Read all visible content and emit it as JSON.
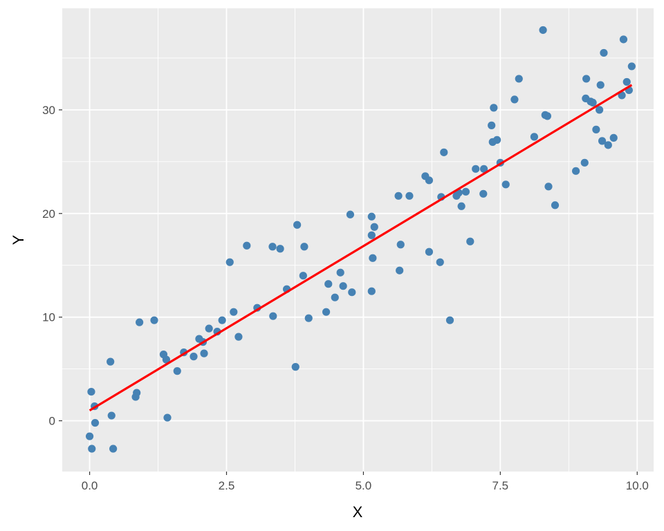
{
  "chart_data": {
    "type": "scatter",
    "title": "",
    "xlabel": "X",
    "ylabel": "Y",
    "xlim": [
      -0.5,
      10.3
    ],
    "ylim": [
      -4.9,
      39.8
    ],
    "x_ticks": [
      0.0,
      2.5,
      5.0,
      7.5,
      10.0
    ],
    "x_tick_labels": [
      "0.0",
      "2.5",
      "5.0",
      "7.5",
      "10.0"
    ],
    "y_ticks": [
      0,
      10,
      20,
      30
    ],
    "y_tick_labels": [
      "0",
      "10",
      "20",
      "30"
    ],
    "grid": true,
    "panel_background": "#ebebeb",
    "point_color": "#4682b4",
    "line_color": "#ff0000",
    "points": [
      {
        "x": 0.03,
        "y": 2.8
      },
      {
        "x": 0.0,
        "y": -1.5
      },
      {
        "x": 0.04,
        "y": -2.7
      },
      {
        "x": 0.09,
        "y": 1.4
      },
      {
        "x": 0.1,
        "y": -0.2
      },
      {
        "x": 0.38,
        "y": 5.7
      },
      {
        "x": 0.4,
        "y": 0.5
      },
      {
        "x": 0.43,
        "y": -2.7
      },
      {
        "x": 0.84,
        "y": 2.3
      },
      {
        "x": 0.86,
        "y": 2.7
      },
      {
        "x": 0.91,
        "y": 9.5
      },
      {
        "x": 1.18,
        "y": 9.7
      },
      {
        "x": 1.35,
        "y": 6.4
      },
      {
        "x": 1.4,
        "y": 5.9
      },
      {
        "x": 1.42,
        "y": 0.3
      },
      {
        "x": 1.6,
        "y": 4.8
      },
      {
        "x": 1.72,
        "y": 6.6
      },
      {
        "x": 1.9,
        "y": 6.2
      },
      {
        "x": 2.0,
        "y": 7.9
      },
      {
        "x": 2.07,
        "y": 7.6
      },
      {
        "x": 2.09,
        "y": 6.5
      },
      {
        "x": 2.18,
        "y": 8.9
      },
      {
        "x": 2.33,
        "y": 8.6
      },
      {
        "x": 2.42,
        "y": 9.7
      },
      {
        "x": 2.56,
        "y": 15.3
      },
      {
        "x": 2.63,
        "y": 10.5
      },
      {
        "x": 2.72,
        "y": 8.1
      },
      {
        "x": 2.87,
        "y": 16.9
      },
      {
        "x": 3.06,
        "y": 10.9
      },
      {
        "x": 3.34,
        "y": 16.8
      },
      {
        "x": 3.35,
        "y": 10.1
      },
      {
        "x": 3.48,
        "y": 16.6
      },
      {
        "x": 3.6,
        "y": 12.7
      },
      {
        "x": 3.76,
        "y": 5.2
      },
      {
        "x": 3.79,
        "y": 18.9
      },
      {
        "x": 3.9,
        "y": 14.0
      },
      {
        "x": 3.92,
        "y": 16.8
      },
      {
        "x": 4.0,
        "y": 9.9
      },
      {
        "x": 4.32,
        "y": 10.5
      },
      {
        "x": 4.36,
        "y": 13.2
      },
      {
        "x": 4.48,
        "y": 11.9
      },
      {
        "x": 4.58,
        "y": 14.3
      },
      {
        "x": 4.63,
        "y": 13.0
      },
      {
        "x": 4.76,
        "y": 19.9
      },
      {
        "x": 4.79,
        "y": 12.4
      },
      {
        "x": 5.15,
        "y": 19.7
      },
      {
        "x": 5.15,
        "y": 17.9
      },
      {
        "x": 5.15,
        "y": 12.5
      },
      {
        "x": 5.17,
        "y": 15.7
      },
      {
        "x": 5.2,
        "y": 18.7
      },
      {
        "x": 5.64,
        "y": 21.7
      },
      {
        "x": 5.66,
        "y": 14.5
      },
      {
        "x": 5.68,
        "y": 17.0
      },
      {
        "x": 5.84,
        "y": 21.7
      },
      {
        "x": 6.13,
        "y": 23.6
      },
      {
        "x": 6.2,
        "y": 23.2
      },
      {
        "x": 6.2,
        "y": 16.3
      },
      {
        "x": 6.4,
        "y": 15.3
      },
      {
        "x": 6.42,
        "y": 21.6
      },
      {
        "x": 6.47,
        "y": 25.9
      },
      {
        "x": 6.58,
        "y": 9.7
      },
      {
        "x": 6.7,
        "y": 21.7
      },
      {
        "x": 6.74,
        "y": 22.0
      },
      {
        "x": 6.79,
        "y": 20.7
      },
      {
        "x": 6.87,
        "y": 22.1
      },
      {
        "x": 6.95,
        "y": 17.3
      },
      {
        "x": 7.05,
        "y": 24.3
      },
      {
        "x": 7.19,
        "y": 21.9
      },
      {
        "x": 7.2,
        "y": 24.3
      },
      {
        "x": 7.34,
        "y": 28.5
      },
      {
        "x": 7.36,
        "y": 26.9
      },
      {
        "x": 7.38,
        "y": 30.2
      },
      {
        "x": 7.44,
        "y": 27.1
      },
      {
        "x": 7.5,
        "y": 24.9
      },
      {
        "x": 7.6,
        "y": 22.8
      },
      {
        "x": 7.76,
        "y": 31.0
      },
      {
        "x": 7.84,
        "y": 33.0
      },
      {
        "x": 8.12,
        "y": 27.4
      },
      {
        "x": 8.28,
        "y": 37.7
      },
      {
        "x": 8.32,
        "y": 29.5
      },
      {
        "x": 8.36,
        "y": 29.4
      },
      {
        "x": 8.38,
        "y": 22.6
      },
      {
        "x": 8.5,
        "y": 20.8
      },
      {
        "x": 8.88,
        "y": 24.1
      },
      {
        "x": 9.04,
        "y": 24.9
      },
      {
        "x": 9.06,
        "y": 31.1
      },
      {
        "x": 9.07,
        "y": 33.0
      },
      {
        "x": 9.15,
        "y": 30.8
      },
      {
        "x": 9.19,
        "y": 30.7
      },
      {
        "x": 9.25,
        "y": 28.1
      },
      {
        "x": 9.31,
        "y": 30.0
      },
      {
        "x": 9.33,
        "y": 32.4
      },
      {
        "x": 9.36,
        "y": 27.0
      },
      {
        "x": 9.39,
        "y": 35.5
      },
      {
        "x": 9.47,
        "y": 26.6
      },
      {
        "x": 9.57,
        "y": 27.3
      },
      {
        "x": 9.72,
        "y": 31.4
      },
      {
        "x": 9.75,
        "y": 36.8
      },
      {
        "x": 9.81,
        "y": 32.7
      },
      {
        "x": 9.85,
        "y": 31.9
      },
      {
        "x": 9.9,
        "y": 34.2
      }
    ],
    "fit_line": {
      "x": [
        0.0,
        9.9
      ],
      "y": [
        1.0,
        32.4
      ]
    }
  }
}
